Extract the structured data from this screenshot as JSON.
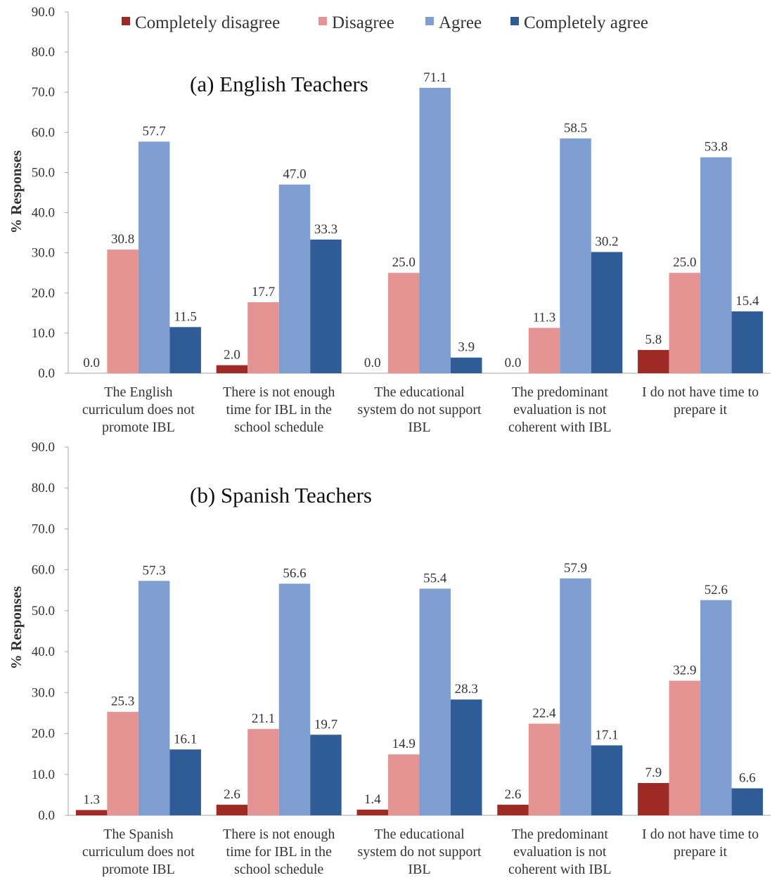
{
  "legend": {
    "entries": [
      "Completely disagree",
      "Disagree",
      "Agree",
      "Completely agree"
    ],
    "placement": "top"
  },
  "colors": {
    "completely_disagree": "#9e2a26",
    "disagree": "#e49493",
    "agree": "#7f9fd2",
    "completely_agree": "#2f5b97",
    "axis": "#a6a6a6",
    "text": "#333333"
  },
  "chart_data": [
    {
      "type": "bar",
      "title": "(a) English Teachers",
      "ylabel": "% Responses",
      "ylim": [
        0,
        90
      ],
      "yticks": [
        "0.0",
        "10.0",
        "20.0",
        "30.0",
        "40.0",
        "50.0",
        "60.0",
        "70.0",
        "80.0",
        "90.0"
      ],
      "grid": false,
      "categories": [
        [
          "The English",
          "curriculum does not",
          "promote IBL"
        ],
        [
          "There is not enough",
          "time for IBL in the",
          "school schedule"
        ],
        [
          "The educational",
          "system do not support",
          "IBL"
        ],
        [
          "The predominant",
          "evaluation is not",
          "coherent with IBL"
        ],
        [
          "I do not have time to",
          "prepare it"
        ]
      ],
      "series": [
        {
          "name": "Completely disagree",
          "values": [
            0.0,
            2.0,
            0.0,
            0.0,
            5.8
          ],
          "labels": [
            "0.0",
            "2.0",
            "0.0",
            "0.0",
            "5.8"
          ]
        },
        {
          "name": "Disagree",
          "values": [
            30.8,
            17.7,
            25.0,
            11.3,
            25.0
          ],
          "labels": [
            "30.8",
            "17.7",
            "25.0",
            "11.3",
            "25.0"
          ]
        },
        {
          "name": "Agree",
          "values": [
            57.7,
            47.0,
            71.1,
            58.5,
            53.8
          ],
          "labels": [
            "57.7",
            "47.0",
            "71.1",
            "58.5",
            "53.8"
          ]
        },
        {
          "name": "Completely agree",
          "values": [
            11.5,
            33.3,
            3.9,
            30.2,
            15.4
          ],
          "labels": [
            "11.5",
            "33.3",
            "3.9",
            "30.2",
            "15.4"
          ]
        }
      ]
    },
    {
      "type": "bar",
      "title": "(b) Spanish Teachers",
      "ylabel": "% Responses",
      "ylim": [
        0,
        90
      ],
      "yticks": [
        "0.0",
        "10.0",
        "20.0",
        "30.0",
        "40.0",
        "50.0",
        "60.0",
        "70.0",
        "80.0",
        "90.0"
      ],
      "grid": false,
      "categories": [
        [
          "The Spanish",
          "curriculum does not",
          "promote IBL"
        ],
        [
          "There is not enough",
          "time for IBL in the",
          "school schedule"
        ],
        [
          "The educational",
          "system do not support",
          "IBL"
        ],
        [
          "The predominant",
          "evaluation is not",
          "coherent with IBL"
        ],
        [
          "I do not have time to",
          "prepare it"
        ]
      ],
      "series": [
        {
          "name": "Completely disagree",
          "values": [
            1.3,
            2.6,
            1.4,
            2.6,
            7.9
          ],
          "labels": [
            "1.3",
            "2.6",
            "1.4",
            "2.6",
            "7.9"
          ]
        },
        {
          "name": "Disagree",
          "values": [
            25.3,
            21.1,
            14.9,
            22.4,
            32.9
          ],
          "labels": [
            "25.3",
            "21.1",
            "14.9",
            "22.4",
            "32.9"
          ]
        },
        {
          "name": "Agree",
          "values": [
            57.3,
            56.6,
            55.4,
            57.9,
            52.6
          ],
          "labels": [
            "57.3",
            "56.6",
            "55.4",
            "57.9",
            "52.6"
          ]
        },
        {
          "name": "Completely agree",
          "values": [
            16.1,
            19.7,
            28.3,
            17.1,
            6.6
          ],
          "labels": [
            "16.1",
            "19.7",
            "28.3",
            "17.1",
            "6.6"
          ]
        }
      ]
    }
  ]
}
